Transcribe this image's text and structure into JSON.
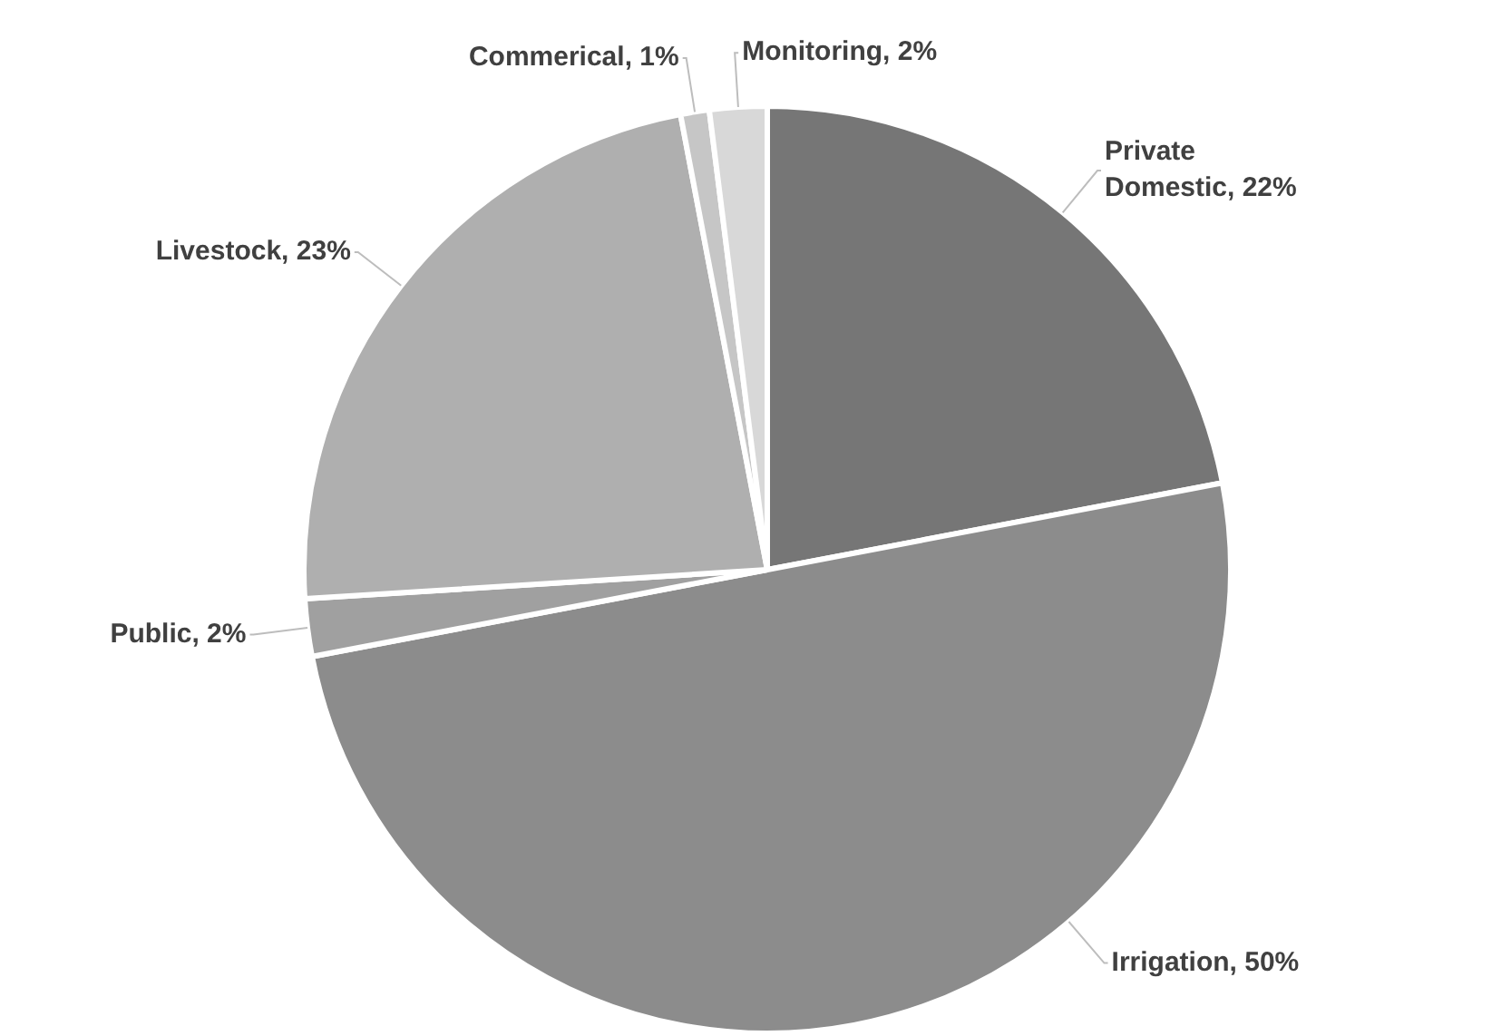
{
  "chart_data": {
    "type": "pie",
    "categories": [
      "Private Domestic",
      "Irrigation",
      "Public",
      "Livestock",
      "Commerical",
      "Monitoring"
    ],
    "values": [
      22,
      50,
      2,
      23,
      1,
      2
    ],
    "value_labels": [
      "22%",
      "50%",
      "2%",
      "23%",
      "1%",
      "2%"
    ],
    "colors": [
      "#767676",
      "#8c8c8c",
      "#a0a0a0",
      "#afafaf",
      "#c6c6c6",
      "#d8d8d8"
    ],
    "legend": false
  }
}
